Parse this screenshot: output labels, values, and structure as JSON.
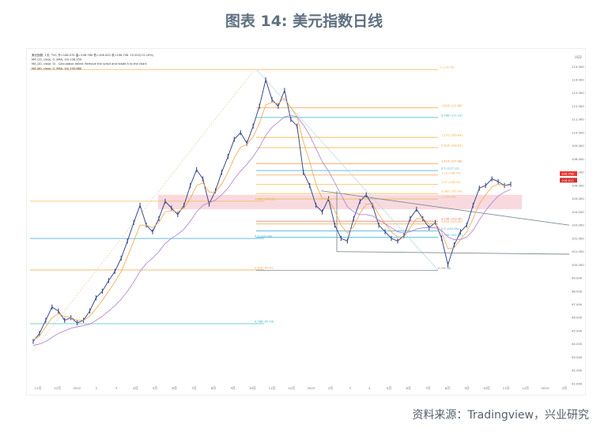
{
  "figure": {
    "title": "图表 14: 美元指数日线",
    "source": "资料来源：Tradingview，兴业研究"
  },
  "chart_data": {
    "type": "line",
    "title": "",
    "xlabel": "",
    "ylabel": "",
    "x_ticks": [
      "11月",
      "12月",
      "2022",
      "2",
      "3",
      "4月",
      "5月",
      "6月",
      "7月",
      "8月",
      "9月",
      "10月",
      "11月",
      "12月",
      "2023",
      "2月",
      "3",
      "4",
      "5月",
      "6月",
      "7月",
      "8月",
      "9月",
      "10月",
      "11月",
      "12月",
      "2024",
      "2月"
    ],
    "y_ticks": [
      "91.000",
      "92.000",
      "93.000",
      "94.000",
      "95.000",
      "96.000",
      "97.000",
      "98.000",
      "99.000",
      "100.000",
      "101.000",
      "102.000",
      "103.000",
      "104.000",
      "105.000",
      "106.000",
      "107.000",
      "108.000",
      "109.000",
      "110.000",
      "111.000",
      "112.000",
      "113.000",
      "114.000",
      "115.000"
    ],
    "ylim": [
      91,
      115.5
    ],
    "series": [
      {
        "values": [
          94.2,
          94.8,
          95.8,
          96.8,
          96.5,
          95.8,
          96.0,
          95.6,
          95.8,
          96.5,
          97.5,
          98.0,
          98.8,
          99.5,
          100.5,
          101.8,
          103.2,
          104.5,
          103.0,
          102.5,
          103.5,
          104.8,
          104.3,
          103.8,
          104.5,
          106.0,
          107.2,
          106.5,
          104.6,
          105.6,
          107.0,
          108.2,
          109.5,
          110.0,
          109.2,
          110.5,
          112.0,
          114.0,
          112.5,
          112.0,
          113.2,
          111.0,
          110.5,
          107.0,
          106.0,
          104.5,
          104.0,
          105.0,
          103.0,
          102.0,
          101.8,
          103.5,
          104.8,
          105.3,
          104.5,
          103.0,
          102.5,
          102.0,
          101.8,
          102.2,
          103.5,
          104.2,
          103.5,
          102.8,
          103.2,
          102.0,
          100.0,
          101.5,
          102.5,
          103.0,
          104.5,
          105.8,
          106.0,
          106.5,
          106.3,
          106.0,
          106.1
        ]
      },
      {
        "values": [
          94.3,
          94.6,
          95.3,
          96.0,
          96.3,
          96.1,
          96.0,
          95.8,
          95.8,
          96.1,
          96.7,
          97.3,
          98.0,
          98.7,
          99.5,
          100.6,
          101.8,
          103.0,
          103.0,
          102.8,
          103.2,
          104.0,
          104.1,
          104.0,
          104.3,
          105.0,
          106.0,
          106.2,
          105.5,
          105.5,
          106.1,
          107.0,
          108.1,
          108.9,
          109.1,
          109.7,
          110.7,
          112.1,
          112.3,
          112.2,
          112.6,
          111.9,
          111.2,
          109.3,
          107.8,
          106.1,
          105.0,
          105.0,
          104.1,
          103.0,
          102.4,
          102.9,
          103.9,
          104.6,
          104.6,
          103.8,
          103.1,
          102.5,
          102.1,
          102.1,
          102.8,
          103.5,
          103.5,
          103.1,
          103.1,
          102.5,
          101.2,
          101.3,
          101.9,
          102.5,
          103.5,
          104.6,
          105.3,
          105.9,
          106.1,
          106.0,
          106.0
        ]
      },
      {
        "values": [
          93.9,
          94.0,
          94.2,
          94.5,
          94.8,
          95.0,
          95.2,
          95.3,
          95.4,
          95.5,
          95.8,
          96.1,
          96.5,
          96.9,
          97.4,
          98.0,
          98.7,
          99.5,
          100.1,
          100.5,
          101.0,
          101.6,
          102.0,
          102.3,
          102.7,
          103.3,
          104.0,
          104.5,
          104.7,
          104.9,
          105.3,
          105.8,
          106.5,
          107.1,
          107.6,
          108.2,
          108.9,
          109.8,
          110.4,
          110.8,
          111.2,
          111.3,
          111.2,
          110.6,
          109.8,
          108.8,
          107.8,
          107.1,
          106.2,
          105.3,
          104.4,
          104.0,
          103.8,
          103.8,
          103.7,
          103.4,
          103.1,
          102.8,
          102.5,
          102.4,
          102.5,
          102.7,
          102.8,
          102.8,
          102.8,
          102.6,
          102.1,
          101.9,
          101.9,
          102.1,
          102.6,
          103.4,
          104.1,
          104.7,
          105.2,
          105.5,
          105.7
        ]
      }
    ],
    "fibonacci_levels": [
      {
        "label": "1 (114.78)",
        "value": 114.78
      },
      {
        "label": "1.618 (111.88)",
        "value": 111.88
      },
      {
        "label": "0.786 (111.15)",
        "value": 111.15
      },
      {
        "label": "1.272 (109.64)",
        "value": 109.64
      },
      {
        "label": "0.618 (108.87)",
        "value": 108.87
      },
      {
        "label": "1.414 (107.66)",
        "value": 107.66
      },
      {
        "label": "0.5 (107.13)",
        "value": 107.13
      },
      {
        "label": "1.13 (106.79)",
        "value": 106.79
      },
      {
        "label": "1.27 (106.09)",
        "value": 106.09
      },
      {
        "label": "0.382 (105.39)",
        "value": 105.39
      },
      {
        "label": "1 (104.98)",
        "value": 104.98
      },
      {
        "label": "0.382 (104.81)",
        "value": 104.81
      },
      {
        "label": "0.236 (103.30)",
        "value": 103.3
      },
      {
        "label": "0.618 (103.09)",
        "value": 103.09
      },
      {
        "label": "0.5 (102.56)",
        "value": 102.56
      },
      {
        "label": "0.5 (101.99)",
        "value": 101.99
      },
      {
        "label": "0.786 (102.08)",
        "value": 102.08
      },
      {
        "label": "0.618 (99.61)",
        "value": 99.61
      },
      {
        "label": "0 (99.58)",
        "value": 99.58
      },
      {
        "label": "0.786 (95.54)",
        "value": 95.54
      }
    ],
    "resistance_zone": [
      104.2,
      105.3
    ],
    "price_tags": [
      "106.758",
      "106.612"
    ],
    "legend": [
      "美元指数, 1天, TVC  开=106.570  高=106.780  低=106.420  收=106.758  +0.202(+0.19%)",
      "MA (15, close, 0, SMA, 10)  106.250",
      "MA (20, close, 0) - Calculation failed. Remove the script and readd it to the chart.",
      "MA (60, close, 0, SMA, 10)  105.680"
    ],
    "axis_currency": "USD",
    "grid": false,
    "legend_position": "top-left"
  }
}
